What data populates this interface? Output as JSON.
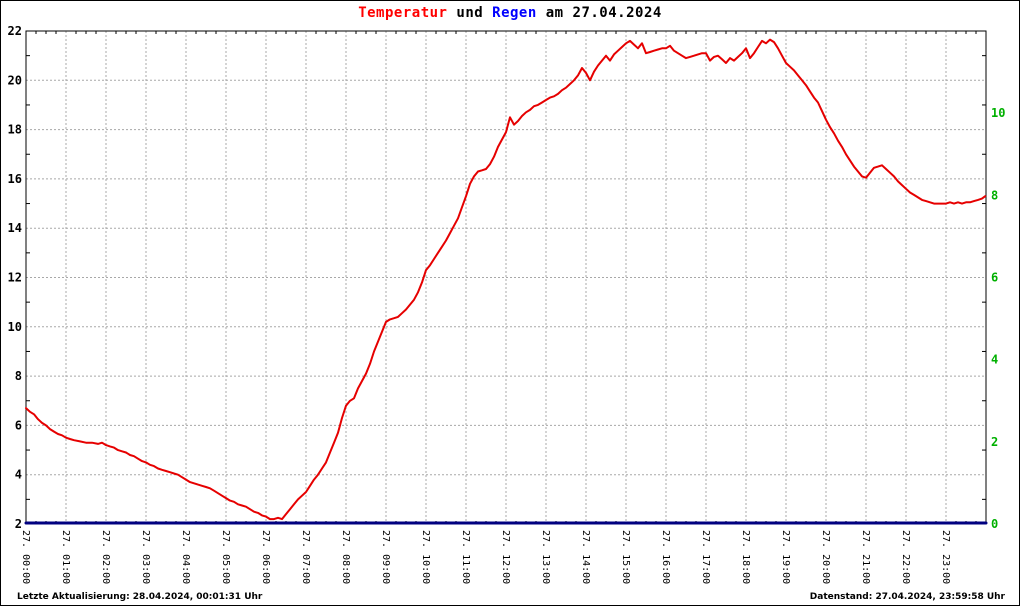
{
  "title": {
    "part1": "Temperatur",
    "part2": " und ",
    "part3": "Regen",
    "part4": " am 27.04.2024"
  },
  "footer": {
    "left": "Letzte Aktualisierung: 28.04.2024, 00:01:31 Uhr",
    "right": "Datenstand: 27.04.2024, 23:59:58 Uhr"
  },
  "colors": {
    "title_temperatur": "#ff0000",
    "title_regen": "#0000ff",
    "temperature_line": "#e60000",
    "rain_line": "#000080",
    "right_axis_labels": "#00b000",
    "left_axis_labels": "#000000",
    "grid": "#a8a8a8",
    "plot_border": "#000000"
  },
  "chart_data": {
    "type": "line",
    "title": "Temperatur und Regen am 27.04.2024",
    "grid": true,
    "x_axis": {
      "range_hours": [
        0,
        24
      ],
      "tick_labels": [
        "27. 00:00",
        "27. 01:00",
        "27. 02:00",
        "27. 03:00",
        "27. 04:00",
        "27. 05:00",
        "27. 06:00",
        "27. 07:00",
        "27. 08:00",
        "27. 09:00",
        "27. 10:00",
        "27. 11:00",
        "27. 12:00",
        "27. 13:00",
        "27. 14:00",
        "27. 15:00",
        "27. 16:00",
        "27. 17:00",
        "27. 18:00",
        "27. 19:00",
        "27. 20:00",
        "27. 21:00",
        "27. 22:00",
        "27. 23:00"
      ]
    },
    "y_left": {
      "series": "Temperatur",
      "range": [
        2,
        22
      ],
      "ticks": [
        22,
        20,
        18,
        16,
        14,
        12,
        10,
        8,
        6,
        4,
        2
      ]
    },
    "y_right": {
      "series": "Regen",
      "range": [
        0,
        12
      ],
      "ticks": [
        10,
        8,
        6,
        4,
        2,
        0
      ]
    },
    "series": [
      {
        "name": "Temperatur",
        "axis": "left",
        "width": 2,
        "points": [
          [
            0.0,
            6.7
          ],
          [
            0.1,
            6.55
          ],
          [
            0.2,
            6.45
          ],
          [
            0.3,
            6.25
          ],
          [
            0.4,
            6.1
          ],
          [
            0.5,
            6.0
          ],
          [
            0.6,
            5.85
          ],
          [
            0.7,
            5.75
          ],
          [
            0.8,
            5.65
          ],
          [
            0.9,
            5.6
          ],
          [
            1.0,
            5.5
          ],
          [
            1.1,
            5.45
          ],
          [
            1.2,
            5.4
          ],
          [
            1.35,
            5.35
          ],
          [
            1.5,
            5.3
          ],
          [
            1.65,
            5.3
          ],
          [
            1.8,
            5.25
          ],
          [
            1.9,
            5.3
          ],
          [
            2.0,
            5.2
          ],
          [
            2.1,
            5.15
          ],
          [
            2.2,
            5.1
          ],
          [
            2.3,
            5.0
          ],
          [
            2.4,
            4.95
          ],
          [
            2.5,
            4.9
          ],
          [
            2.6,
            4.8
          ],
          [
            2.7,
            4.75
          ],
          [
            2.8,
            4.65
          ],
          [
            2.9,
            4.55
          ],
          [
            3.0,
            4.5
          ],
          [
            3.1,
            4.4
          ],
          [
            3.2,
            4.35
          ],
          [
            3.3,
            4.25
          ],
          [
            3.4,
            4.2
          ],
          [
            3.5,
            4.15
          ],
          [
            3.6,
            4.1
          ],
          [
            3.7,
            4.05
          ],
          [
            3.8,
            4.0
          ],
          [
            3.9,
            3.9
          ],
          [
            4.0,
            3.8
          ],
          [
            4.1,
            3.7
          ],
          [
            4.2,
            3.65
          ],
          [
            4.3,
            3.6
          ],
          [
            4.4,
            3.55
          ],
          [
            4.5,
            3.5
          ],
          [
            4.6,
            3.45
          ],
          [
            4.7,
            3.35
          ],
          [
            4.8,
            3.25
          ],
          [
            4.9,
            3.15
          ],
          [
            5.0,
            3.05
          ],
          [
            5.1,
            2.95
          ],
          [
            5.2,
            2.9
          ],
          [
            5.3,
            2.8
          ],
          [
            5.4,
            2.75
          ],
          [
            5.5,
            2.7
          ],
          [
            5.6,
            2.6
          ],
          [
            5.7,
            2.5
          ],
          [
            5.8,
            2.45
          ],
          [
            5.9,
            2.35
          ],
          [
            6.0,
            2.3
          ],
          [
            6.1,
            2.2
          ],
          [
            6.2,
            2.2
          ],
          [
            6.3,
            2.25
          ],
          [
            6.4,
            2.2
          ],
          [
            6.5,
            2.4
          ],
          [
            6.6,
            2.6
          ],
          [
            6.7,
            2.8
          ],
          [
            6.8,
            3.0
          ],
          [
            6.9,
            3.15
          ],
          [
            7.0,
            3.3
          ],
          [
            7.1,
            3.55
          ],
          [
            7.2,
            3.8
          ],
          [
            7.3,
            4.0
          ],
          [
            7.4,
            4.25
          ],
          [
            7.5,
            4.5
          ],
          [
            7.6,
            4.9
          ],
          [
            7.7,
            5.3
          ],
          [
            7.8,
            5.7
          ],
          [
            7.9,
            6.3
          ],
          [
            8.0,
            6.8
          ],
          [
            8.1,
            7.0
          ],
          [
            8.2,
            7.1
          ],
          [
            8.3,
            7.5
          ],
          [
            8.4,
            7.8
          ],
          [
            8.5,
            8.1
          ],
          [
            8.6,
            8.5
          ],
          [
            8.7,
            9.0
          ],
          [
            8.8,
            9.4
          ],
          [
            8.9,
            9.8
          ],
          [
            9.0,
            10.2
          ],
          [
            9.1,
            10.3
          ],
          [
            9.2,
            10.35
          ],
          [
            9.3,
            10.4
          ],
          [
            9.4,
            10.55
          ],
          [
            9.5,
            10.7
          ],
          [
            9.6,
            10.9
          ],
          [
            9.7,
            11.1
          ],
          [
            9.8,
            11.4
          ],
          [
            9.9,
            11.8
          ],
          [
            10.0,
            12.3
          ],
          [
            10.1,
            12.5
          ],
          [
            10.2,
            12.75
          ],
          [
            10.3,
            13.0
          ],
          [
            10.4,
            13.25
          ],
          [
            10.5,
            13.5
          ],
          [
            10.6,
            13.8
          ],
          [
            10.7,
            14.1
          ],
          [
            10.8,
            14.4
          ],
          [
            10.9,
            14.85
          ],
          [
            11.0,
            15.3
          ],
          [
            11.1,
            15.8
          ],
          [
            11.2,
            16.1
          ],
          [
            11.3,
            16.3
          ],
          [
            11.4,
            16.35
          ],
          [
            11.5,
            16.4
          ],
          [
            11.6,
            16.6
          ],
          [
            11.7,
            16.9
          ],
          [
            11.8,
            17.3
          ],
          [
            11.9,
            17.6
          ],
          [
            12.0,
            17.9
          ],
          [
            12.1,
            18.5
          ],
          [
            12.2,
            18.2
          ],
          [
            12.3,
            18.35
          ],
          [
            12.4,
            18.55
          ],
          [
            12.5,
            18.7
          ],
          [
            12.6,
            18.8
          ],
          [
            12.7,
            18.95
          ],
          [
            12.8,
            19.0
          ],
          [
            12.9,
            19.1
          ],
          [
            13.0,
            19.2
          ],
          [
            13.1,
            19.3
          ],
          [
            13.2,
            19.35
          ],
          [
            13.3,
            19.45
          ],
          [
            13.4,
            19.6
          ],
          [
            13.5,
            19.7
          ],
          [
            13.6,
            19.85
          ],
          [
            13.7,
            20.0
          ],
          [
            13.8,
            20.2
          ],
          [
            13.9,
            20.5
          ],
          [
            14.0,
            20.3
          ],
          [
            14.1,
            20.0
          ],
          [
            14.2,
            20.35
          ],
          [
            14.3,
            20.6
          ],
          [
            14.4,
            20.8
          ],
          [
            14.5,
            21.0
          ],
          [
            14.6,
            20.8
          ],
          [
            14.7,
            21.05
          ],
          [
            14.8,
            21.2
          ],
          [
            14.9,
            21.35
          ],
          [
            15.0,
            21.5
          ],
          [
            15.1,
            21.6
          ],
          [
            15.2,
            21.45
          ],
          [
            15.3,
            21.3
          ],
          [
            15.4,
            21.5
          ],
          [
            15.5,
            21.1
          ],
          [
            15.6,
            21.15
          ],
          [
            15.7,
            21.2
          ],
          [
            15.8,
            21.25
          ],
          [
            15.9,
            21.3
          ],
          [
            16.0,
            21.3
          ],
          [
            16.1,
            21.4
          ],
          [
            16.2,
            21.2
          ],
          [
            16.3,
            21.1
          ],
          [
            16.4,
            21.0
          ],
          [
            16.5,
            20.9
          ],
          [
            16.6,
            20.95
          ],
          [
            16.7,
            21.0
          ],
          [
            16.8,
            21.05
          ],
          [
            16.9,
            21.1
          ],
          [
            17.0,
            21.1
          ],
          [
            17.1,
            20.8
          ],
          [
            17.2,
            20.95
          ],
          [
            17.3,
            21.0
          ],
          [
            17.4,
            20.85
          ],
          [
            17.5,
            20.7
          ],
          [
            17.6,
            20.9
          ],
          [
            17.7,
            20.8
          ],
          [
            17.8,
            20.95
          ],
          [
            17.9,
            21.1
          ],
          [
            18.0,
            21.3
          ],
          [
            18.1,
            20.9
          ],
          [
            18.2,
            21.1
          ],
          [
            18.3,
            21.35
          ],
          [
            18.4,
            21.6
          ],
          [
            18.5,
            21.5
          ],
          [
            18.6,
            21.65
          ],
          [
            18.7,
            21.55
          ],
          [
            18.8,
            21.3
          ],
          [
            18.9,
            21.0
          ],
          [
            19.0,
            20.7
          ],
          [
            19.1,
            20.55
          ],
          [
            19.2,
            20.4
          ],
          [
            19.3,
            20.2
          ],
          [
            19.4,
            20.0
          ],
          [
            19.5,
            19.8
          ],
          [
            19.6,
            19.55
          ],
          [
            19.7,
            19.3
          ],
          [
            19.8,
            19.1
          ],
          [
            19.9,
            18.75
          ],
          [
            20.0,
            18.4
          ],
          [
            20.1,
            18.1
          ],
          [
            20.2,
            17.85
          ],
          [
            20.3,
            17.55
          ],
          [
            20.4,
            17.3
          ],
          [
            20.5,
            17.0
          ],
          [
            20.6,
            16.75
          ],
          [
            20.7,
            16.5
          ],
          [
            20.8,
            16.3
          ],
          [
            20.9,
            16.1
          ],
          [
            21.0,
            16.05
          ],
          [
            21.1,
            16.25
          ],
          [
            21.2,
            16.45
          ],
          [
            21.3,
            16.5
          ],
          [
            21.4,
            16.55
          ],
          [
            21.5,
            16.4
          ],
          [
            21.6,
            16.25
          ],
          [
            21.7,
            16.1
          ],
          [
            21.8,
            15.9
          ],
          [
            21.9,
            15.75
          ],
          [
            22.0,
            15.6
          ],
          [
            22.1,
            15.45
          ],
          [
            22.2,
            15.35
          ],
          [
            22.3,
            15.25
          ],
          [
            22.4,
            15.15
          ],
          [
            22.5,
            15.1
          ],
          [
            22.6,
            15.05
          ],
          [
            22.7,
            15.0
          ],
          [
            22.8,
            15.0
          ],
          [
            22.9,
            15.0
          ],
          [
            23.0,
            15.0
          ],
          [
            23.1,
            15.05
          ],
          [
            23.2,
            15.0
          ],
          [
            23.3,
            15.05
          ],
          [
            23.4,
            15.0
          ],
          [
            23.5,
            15.05
          ],
          [
            23.6,
            15.05
          ],
          [
            23.7,
            15.1
          ],
          [
            23.8,
            15.15
          ],
          [
            23.9,
            15.2
          ],
          [
            23.98,
            15.3
          ]
        ]
      },
      {
        "name": "Regen",
        "axis": "right",
        "width": 3,
        "points": [
          [
            0,
            0
          ],
          [
            24,
            0
          ]
        ]
      }
    ]
  }
}
